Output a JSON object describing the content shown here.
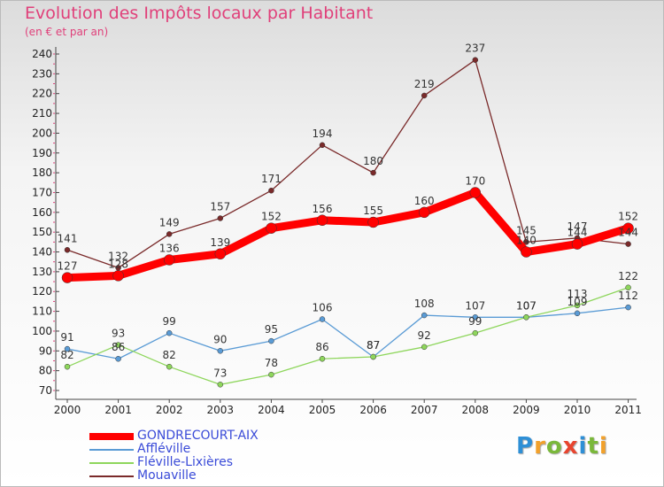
{
  "chart_data": {
    "type": "line",
    "title": "Evolution des Impôts locaux par Habitant",
    "subtitle": "(en € et par an)",
    "xlabel": "",
    "ylabel": "",
    "categories": [
      "2000",
      "2001",
      "2002",
      "2003",
      "2004",
      "2005",
      "2006",
      "2007",
      "2008",
      "2009",
      "2010",
      "2011"
    ],
    "yticks": [
      70,
      80,
      90,
      100,
      110,
      120,
      130,
      140,
      150,
      160,
      170,
      180,
      190,
      200,
      210,
      220,
      230,
      240
    ],
    "ylim": [
      70,
      240
    ],
    "grid": false,
    "legend_position": "bottom-left",
    "series": [
      {
        "name": "GONDRECOURT-AIX",
        "color": "#ff0000",
        "values": [
          127,
          128,
          136,
          139,
          152,
          156,
          155,
          160,
          170,
          140,
          144,
          152
        ]
      },
      {
        "name": "Affléville",
        "color": "#5a9bd5",
        "values": [
          91,
          86,
          99,
          90,
          95,
          106,
          87,
          108,
          107,
          107,
          109,
          112
        ]
      },
      {
        "name": "Fléville-Lixières",
        "color": "#8ed65c",
        "values": [
          82,
          93,
          82,
          73,
          78,
          86,
          87,
          92,
          99,
          107,
          113,
          122
        ]
      },
      {
        "name": "Mouaville",
        "color": "#7a2a2a",
        "values": [
          141,
          132,
          149,
          157,
          171,
          194,
          180,
          219,
          237,
          145,
          147,
          144
        ]
      }
    ],
    "value_labels": {
      "GONDRECOURT-AIX": [
        "127",
        "128",
        "136",
        "139",
        "152",
        "156",
        "155",
        "160",
        "170",
        "140",
        "144",
        "152"
      ],
      "Affléville": [
        "91",
        "86",
        "99",
        "90",
        "95",
        "106",
        "87",
        "108",
        "107",
        "107",
        "109",
        "112"
      ],
      "Fléville-Lixières": [
        "82",
        "93",
        "82",
        "73",
        "78",
        "86",
        "87",
        "92",
        "99",
        "107",
        "113",
        "122"
      ],
      "Mouaville": [
        "141",
        "132",
        "149",
        "157",
        "171",
        "194",
        "180",
        "219",
        "237",
        "145",
        "147",
        "144"
      ]
    }
  },
  "logo": {
    "letters": [
      "P",
      "r",
      "o",
      "x",
      "i",
      "t",
      "i"
    ],
    "colors": [
      "#2e8fd6",
      "#f2a12b",
      "#7ab83a",
      "#e8452f",
      "#2e8fd6",
      "#7ab83a",
      "#f2a12b"
    ]
  }
}
